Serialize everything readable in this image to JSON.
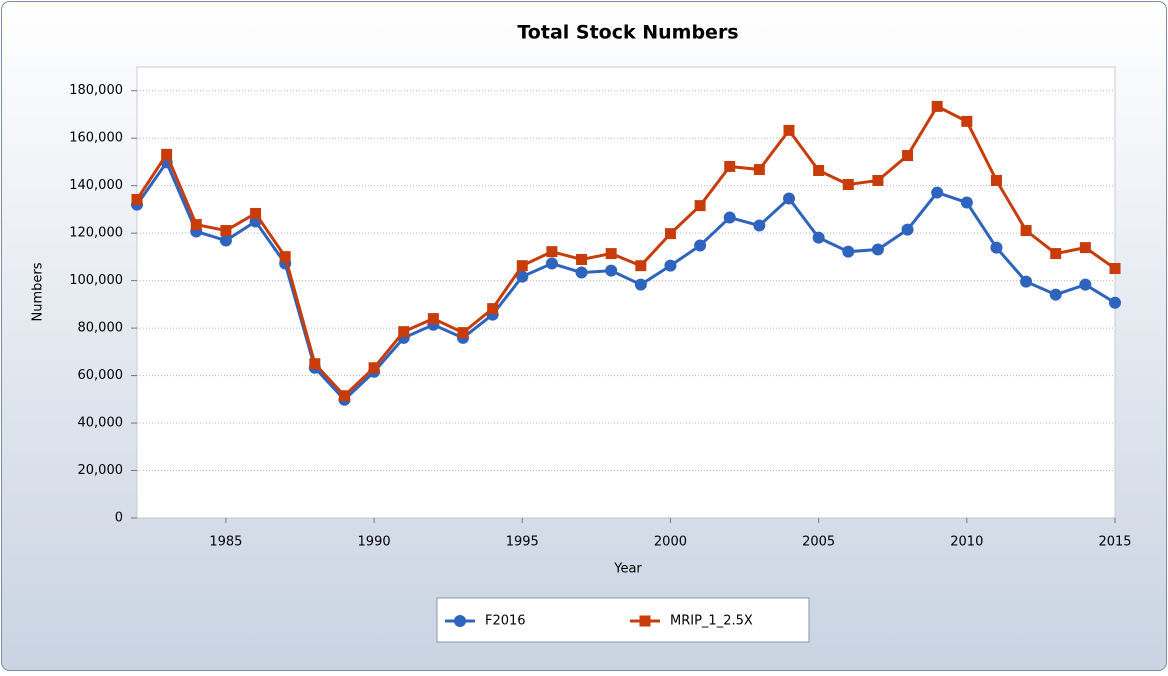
{
  "chart_data": {
    "type": "line",
    "title": "Total Stock Numbers",
    "x_label": "Year",
    "y_label": "Numbers",
    "x": [
      1982,
      1983,
      1984,
      1985,
      1986,
      1987,
      1988,
      1989,
      1990,
      1991,
      1992,
      1993,
      1994,
      1995,
      1996,
      1997,
      1998,
      1999,
      2000,
      2001,
      2002,
      2003,
      2004,
      2005,
      2006,
      2007,
      2008,
      2009,
      2010,
      2011,
      2012,
      2013,
      2014,
      2015
    ],
    "series": [
      {
        "name": "F2016",
        "color": "#2e64be",
        "marker": "circle",
        "values": [
          132000,
          149800,
          120700,
          116900,
          124900,
          107200,
          63300,
          49800,
          61600,
          75900,
          81400,
          75900,
          85700,
          101700,
          107200,
          103400,
          104200,
          98300,
          106300,
          114800,
          126600,
          123200,
          134600,
          118100,
          112200,
          113100,
          121500,
          137100,
          132900,
          113900,
          99600,
          94100,
          98300,
          90700
        ]
      },
      {
        "name": "MRIP_1_2.5X",
        "color": "#c83c0a",
        "marker": "square",
        "values": [
          134200,
          153200,
          123600,
          121100,
          128300,
          110100,
          65000,
          51500,
          63300,
          78500,
          84000,
          78100,
          88200,
          106300,
          112200,
          108900,
          111400,
          106300,
          119800,
          131600,
          148100,
          146800,
          163300,
          146400,
          140500,
          142200,
          152700,
          173400,
          167100,
          142200,
          121100,
          111400,
          113900,
          105100
        ]
      }
    ],
    "xlim": [
      1982,
      2015
    ],
    "xticks": [
      1985,
      1990,
      1995,
      2000,
      2005,
      2010,
      2015
    ],
    "ylim": [
      0,
      190000
    ],
    "yticks": [
      0,
      {
        "value": 20000,
        "label": "20,000"
      },
      {
        "value": 40000,
        "label": "40,000"
      },
      {
        "value": 60000,
        "label": "60,000"
      },
      {
        "value": 80000,
        "label": "80,000"
      },
      {
        "value": 100000,
        "label": "100,000"
      },
      {
        "value": 120000,
        "label": "120,000"
      },
      {
        "value": 140000,
        "label": "140,000"
      },
      {
        "value": 160000,
        "label": "160,000"
      },
      {
        "value": 180000,
        "label": "180,000"
      }
    ],
    "grid": true,
    "legend": "bottom"
  }
}
